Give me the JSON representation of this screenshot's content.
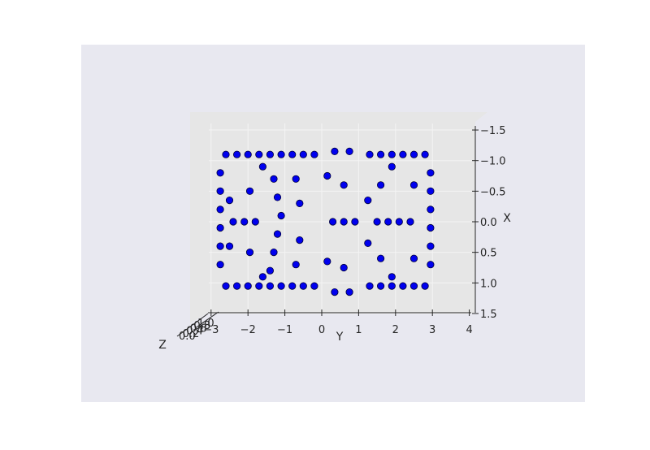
{
  "colors": {
    "figure_bg": "#ffffff",
    "axes_bg": "#e8e8f0",
    "pane": "#e6e6e6",
    "grid": "#f4f4f4",
    "point_fill": "#0000ee",
    "point_edge": "#00003a",
    "text": "#262626"
  },
  "chart_data": {
    "type": "scatter",
    "projection": "3d",
    "title": "",
    "xlabel": "X",
    "ylabel": "Y",
    "zlabel": "Z",
    "x_ticks": [
      "−1.5",
      "−1.0",
      "−0.5",
      "0.0",
      "0.5",
      "1.0",
      "1.5"
    ],
    "y_ticks": [
      "−3",
      "−2",
      "−1",
      "0",
      "1",
      "2",
      "3",
      "4"
    ],
    "z_ticks": [
      "0.0",
      "0.2",
      "0.4",
      "0.6",
      "0.8",
      "1.0"
    ],
    "xlim": [
      -1.5,
      1.5
    ],
    "ylim": [
      -3.2,
      4.0
    ],
    "grid": true,
    "series": [
      {
        "color": "#0000ee",
        "values_note": "",
        "points": [
          [
            -1.1,
            -2.6
          ],
          [
            -1.1,
            -2.3
          ],
          [
            -1.1,
            -2.0
          ],
          [
            -1.1,
            -1.7
          ],
          [
            -1.1,
            -1.4
          ],
          [
            -1.1,
            -1.1
          ],
          [
            -1.1,
            -0.8
          ],
          [
            -1.1,
            -0.5
          ],
          [
            -1.1,
            -0.2
          ],
          [
            -1.1,
            1.3
          ],
          [
            -1.1,
            1.6
          ],
          [
            -1.1,
            1.9
          ],
          [
            -1.1,
            2.2
          ],
          [
            -1.1,
            2.5
          ],
          [
            -1.1,
            2.8
          ],
          [
            1.05,
            -2.6
          ],
          [
            1.05,
            -2.3
          ],
          [
            1.05,
            -2.0
          ],
          [
            1.05,
            -1.7
          ],
          [
            1.05,
            -1.4
          ],
          [
            1.05,
            -1.1
          ],
          [
            1.05,
            -0.8
          ],
          [
            1.05,
            -0.5
          ],
          [
            1.05,
            -0.2
          ],
          [
            1.05,
            1.3
          ],
          [
            1.05,
            1.6
          ],
          [
            1.05,
            1.9
          ],
          [
            1.05,
            2.2
          ],
          [
            1.05,
            2.5
          ],
          [
            1.05,
            2.8
          ],
          [
            -0.8,
            -2.75
          ],
          [
            -0.5,
            -2.75
          ],
          [
            -0.2,
            -2.75
          ],
          [
            0.1,
            -2.75
          ],
          [
            0.4,
            -2.75
          ],
          [
            0.7,
            -2.75
          ],
          [
            -0.8,
            2.95
          ],
          [
            -0.5,
            2.95
          ],
          [
            -0.2,
            2.95
          ],
          [
            0.1,
            2.95
          ],
          [
            0.4,
            2.95
          ],
          [
            0.7,
            2.95
          ],
          [
            0.0,
            -2.4
          ],
          [
            0.0,
            -2.1
          ],
          [
            0.0,
            -1.8
          ],
          [
            0.0,
            1.5
          ],
          [
            0.0,
            1.8
          ],
          [
            0.0,
            2.1
          ],
          [
            0.0,
            2.4
          ],
          [
            -0.7,
            -1.3
          ],
          [
            -0.4,
            -1.2
          ],
          [
            -0.1,
            -1.1
          ],
          [
            0.2,
            -1.2
          ],
          [
            0.5,
            -1.3
          ],
          [
            0.8,
            -1.4
          ],
          [
            -0.7,
            -0.7
          ],
          [
            -0.3,
            -0.6
          ],
          [
            0.3,
            -0.6
          ],
          [
            0.7,
            -0.7
          ],
          [
            -0.6,
            1.6
          ],
          [
            0.6,
            1.6
          ],
          [
            -0.6,
            2.5
          ],
          [
            0.6,
            2.5
          ],
          [
            -1.15,
            0.35
          ],
          [
            -1.15,
            0.75
          ],
          [
            1.15,
            0.35
          ],
          [
            1.15,
            0.75
          ],
          [
            -0.75,
            0.15
          ],
          [
            -0.6,
            0.6
          ],
          [
            0.65,
            0.15
          ],
          [
            0.75,
            0.6
          ],
          [
            0.0,
            0.3
          ],
          [
            0.0,
            0.6
          ],
          [
            0.0,
            0.9
          ],
          [
            -0.35,
            -2.5
          ],
          [
            0.4,
            -2.5
          ],
          [
            -0.5,
            -1.95
          ],
          [
            0.5,
            -1.95
          ],
          [
            -0.35,
            1.25
          ],
          [
            0.35,
            1.25
          ],
          [
            0.9,
            -1.6
          ],
          [
            0.9,
            1.9
          ],
          [
            -0.9,
            -1.6
          ],
          [
            -0.9,
            1.9
          ]
        ]
      }
    ]
  }
}
